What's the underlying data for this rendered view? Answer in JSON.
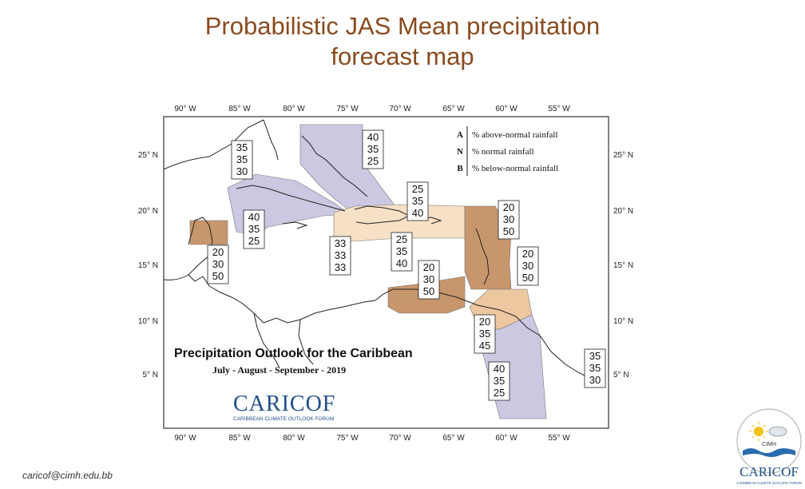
{
  "slide": {
    "title_line1": "Probabilistic JAS Mean precipitation",
    "title_line2": "forecast map",
    "footer_email": "caricof@cimh.edu.bb"
  },
  "map": {
    "title": "Precipitation Outlook for the Caribbean",
    "subtitle": "July - August - September - 2019",
    "longitude_ticks": [
      "90° W",
      "85° W",
      "80° W",
      "75° W",
      "70° W",
      "65° W",
      "60° W",
      "55° W"
    ],
    "latitude_ticks": [
      "25° N",
      "20° N",
      "15° N",
      "10° N",
      "5° N"
    ],
    "legend": [
      {
        "key": "A",
        "text": "% above-normal rainfall"
      },
      {
        "key": "N",
        "text": "% normal rainfall"
      },
      {
        "key": "B",
        "text": "% below-normal rainfall"
      }
    ],
    "colors": {
      "above_normal": "#cbc8e2",
      "near_normal": "#f6e0c6",
      "below_normal_light": "#ecc7a0",
      "below_normal": "#c8966c",
      "title_brown": "#8a4b1e"
    },
    "forecast_boxes": [
      {
        "id": "bahamas",
        "values": [
          "40",
          "35",
          "25"
        ]
      },
      {
        "id": "gulf-cuba-west",
        "values": [
          "35",
          "35",
          "30"
        ]
      },
      {
        "id": "cuba",
        "values": [
          "40",
          "35",
          "25"
        ]
      },
      {
        "id": "belize",
        "values": [
          "20",
          "30",
          "50"
        ]
      },
      {
        "id": "central",
        "values": [
          "33",
          "33",
          "33"
        ]
      },
      {
        "id": "hispaniola",
        "values": [
          "25",
          "35",
          "40"
        ]
      },
      {
        "id": "puerto-rico",
        "values": [
          "25",
          "35",
          "40"
        ]
      },
      {
        "id": "leeward",
        "values": [
          "20",
          "30",
          "50"
        ]
      },
      {
        "id": "abc-islands",
        "values": [
          "20",
          "30",
          "50"
        ]
      },
      {
        "id": "windward",
        "values": [
          "20",
          "30",
          "50"
        ]
      },
      {
        "id": "trinidad",
        "values": [
          "20",
          "35",
          "45"
        ]
      },
      {
        "id": "guianas",
        "values": [
          "40",
          "35",
          "25"
        ]
      },
      {
        "id": "suriname-east",
        "values": [
          "35",
          "35",
          "30"
        ]
      }
    ]
  },
  "logos": {
    "caricof_main": "CARICOF",
    "caricof_sub": "CARIBBEAN CLIMATE OUTLOOK FORUM",
    "cimh_text": "CIMH",
    "caricof_small": "CARICOF",
    "caricof_small_sub": "CARIBBEAN CLIMATE OUTLOOK FORUM"
  }
}
